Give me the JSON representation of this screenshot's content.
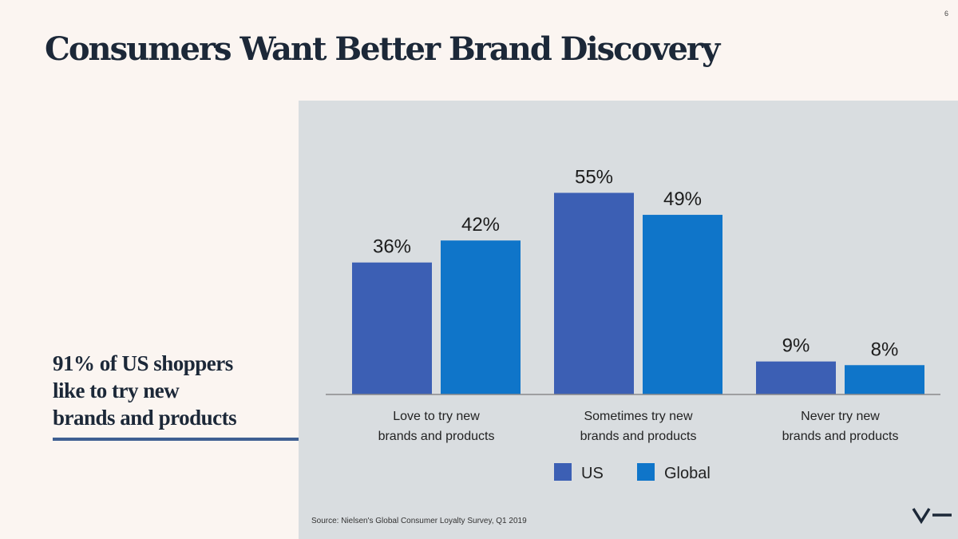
{
  "slide": {
    "number": "6"
  },
  "title": "Consumers Want Better Brand Discovery",
  "callout": {
    "lines": [
      "91% of US shoppers",
      "like to try new",
      "brands and products"
    ]
  },
  "source": "Source: Nielsen's Global Consumer Loyalty Survey, Q1 2019",
  "logo": {
    "icon": "v-dash-logo-icon"
  },
  "colors": {
    "us": "#3c5fb4",
    "global": "#0f75c9",
    "panel": "#d9dde0",
    "text_dark": "#1c2838"
  },
  "chart_data": {
    "type": "bar",
    "categories": [
      [
        "Love to try new",
        "brands and products"
      ],
      [
        "Sometimes try new",
        "brands and products"
      ],
      [
        "Never try new",
        "brands and products"
      ]
    ],
    "series": [
      {
        "name": "US",
        "values": [
          36,
          55,
          9
        ],
        "labels": [
          "36%",
          "55%",
          "9%"
        ]
      },
      {
        "name": "Global",
        "values": [
          42,
          49,
          8
        ],
        "labels": [
          "42%",
          "49%",
          "8%"
        ]
      }
    ],
    "ylim": [
      0,
      66
    ],
    "grid": false,
    "legend_position": "bottom-center"
  }
}
